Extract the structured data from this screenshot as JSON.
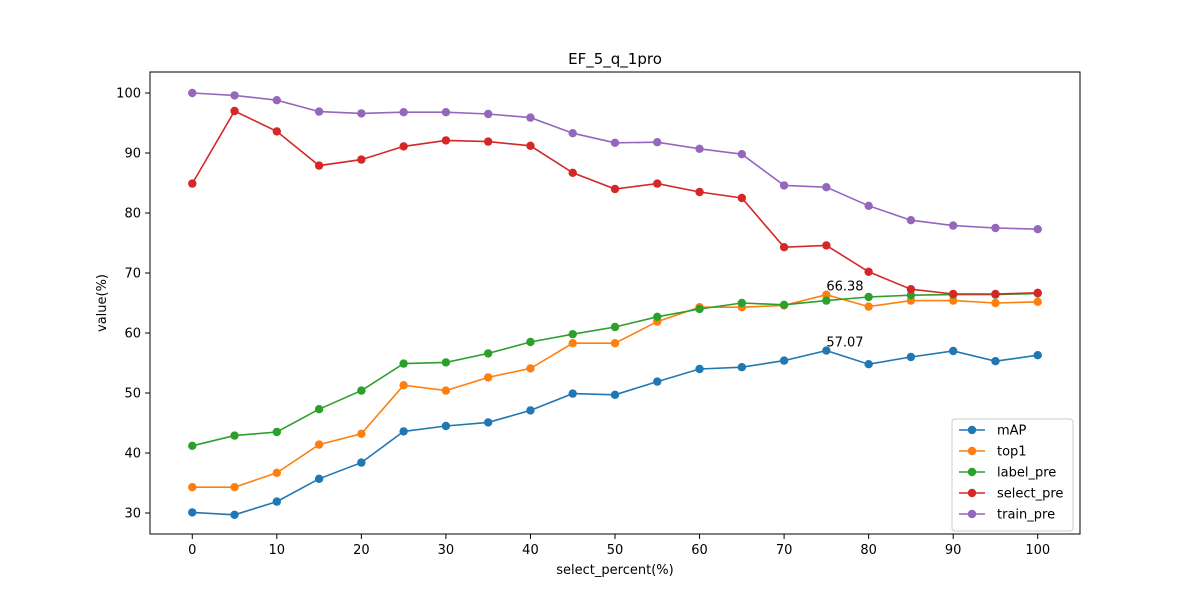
{
  "chart_data": {
    "type": "line",
    "title": "EF_5_q_1pro",
    "xlabel": "select_percent(%)",
    "ylabel": "value(%)",
    "x": [
      0,
      5,
      10,
      15,
      20,
      25,
      30,
      35,
      40,
      45,
      50,
      55,
      60,
      65,
      70,
      75,
      80,
      85,
      90,
      95,
      100
    ],
    "xticks": [
      0,
      10,
      20,
      30,
      40,
      50,
      60,
      70,
      80,
      90,
      100
    ],
    "yticks": [
      30,
      40,
      50,
      60,
      70,
      80,
      90,
      100
    ],
    "xlim": [
      -5,
      105
    ],
    "ylim": [
      26.5,
      103.5
    ],
    "grid": false,
    "legend_position": "lower-right",
    "series": [
      {
        "name": "mAP",
        "color": "#1f77b4",
        "values": [
          30.1,
          29.7,
          31.9,
          35.7,
          38.4,
          43.6,
          44.5,
          45.1,
          47.1,
          49.9,
          49.7,
          51.9,
          54.0,
          54.3,
          55.4,
          57.07,
          54.8,
          56.0,
          57.0,
          55.3,
          56.3
        ]
      },
      {
        "name": "top1",
        "color": "#ff7f0e",
        "values": [
          34.3,
          34.3,
          36.7,
          41.4,
          43.2,
          51.3,
          50.4,
          52.6,
          54.1,
          58.3,
          58.3,
          61.9,
          64.3,
          64.3,
          64.6,
          66.38,
          64.4,
          65.4,
          65.4,
          65.0,
          65.2
        ]
      },
      {
        "name": "label_pre",
        "color": "#2ca02c",
        "values": [
          41.2,
          42.9,
          43.5,
          47.3,
          50.4,
          54.9,
          55.1,
          56.6,
          58.5,
          59.8,
          61.0,
          62.7,
          64.0,
          65.0,
          64.7,
          65.4,
          66.0,
          66.3,
          66.4,
          66.4,
          66.6
        ]
      },
      {
        "name": "select_pre",
        "color": "#d62728",
        "values": [
          84.9,
          97.0,
          93.6,
          87.9,
          88.9,
          91.1,
          92.1,
          91.9,
          91.2,
          86.7,
          84.0,
          84.9,
          83.5,
          82.5,
          74.3,
          74.6,
          70.2,
          67.3,
          66.5,
          66.5,
          66.7
        ]
      },
      {
        "name": "train_pre",
        "color": "#9467bd",
        "values": [
          100.0,
          99.6,
          98.8,
          96.9,
          96.6,
          96.8,
          96.8,
          96.5,
          95.9,
          93.3,
          91.7,
          91.8,
          90.7,
          89.8,
          84.6,
          84.3,
          81.2,
          78.8,
          77.9,
          77.5,
          77.3
        ]
      }
    ],
    "annotations": [
      {
        "text": "66.38",
        "x": 75,
        "y": 66.38
      },
      {
        "text": "57.07",
        "x": 75,
        "y": 57.07
      }
    ]
  }
}
